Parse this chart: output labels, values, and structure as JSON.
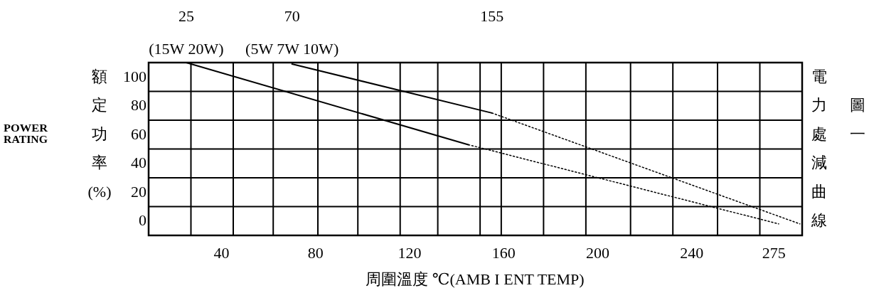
{
  "chart_data": {
    "type": "line",
    "xlabel": "周圍溫度 ℃(AMB I ENT   TEMP)",
    "ylabel": "額定功率(%)",
    "y2label": "電力處減曲線",
    "annotations": [
      "POWER RATING",
      "圖一"
    ],
    "xlim": [
      9,
      287
    ],
    "xticks": [
      {
        "value": 27,
        "label": null
      },
      40,
      {
        "value": 45,
        "label": null
      },
      {
        "value": 62,
        "label": null
      },
      80,
      {
        "value": 81,
        "label": null
      },
      {
        "value": 98,
        "label": null
      },
      {
        "value": 116,
        "label": null
      },
      120,
      {
        "value": 132,
        "label": null
      },
      {
        "value": 150,
        "label": null
      },
      {
        "value": 159,
        "label": null
      },
      160,
      {
        "value": 177,
        "label": null
      },
      {
        "value": 195,
        "label": null
      },
      200,
      {
        "value": 214,
        "label": null
      },
      {
        "value": 232,
        "label": null
      },
      240,
      {
        "value": 251,
        "label": null
      },
      {
        "value": 269,
        "label": null
      },
      275
    ],
    "x2lim": [
      9,
      287
    ],
    "x2ticks": [
      25,
      70,
      155
    ],
    "ylim": [
      -20,
      100
    ],
    "yticks": [
      0,
      20,
      40,
      60,
      80,
      100
    ],
    "grid": true,
    "series": [
      {
        "name": "(15W 20W)",
        "color": "#000000",
        "line_style": "solid",
        "x": [
          25,
          145
        ],
        "values": [
          100,
          43
        ]
      },
      {
        "color": "#000000",
        "line_style": "dotted",
        "x": [
          145,
          277
        ],
        "values": [
          43,
          -12
        ]
      },
      {
        "name": "(5W 7W 10W)",
        "color": "#000000",
        "line_style": "solid",
        "x": [
          70,
          155
        ],
        "values": [
          99,
          65
        ]
      },
      {
        "color": "#000000",
        "line_style": "dotted",
        "x": [
          155,
          286
        ],
        "values": [
          65,
          -12
        ]
      }
    ]
  }
}
